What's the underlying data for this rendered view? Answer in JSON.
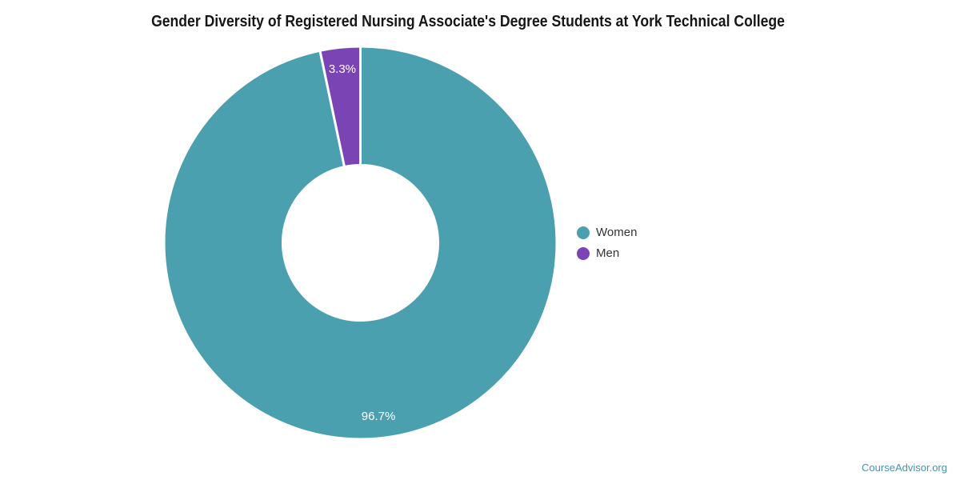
{
  "title": "Gender Diversity of Registered Nursing Associate's Degree Students at York Technical College",
  "watermark": "CourseAdvisor.org",
  "colors": {
    "women": "#4AA0AF",
    "men": "#7A44B4",
    "data_label_text": "#ffffff",
    "legend_text": "#333333",
    "title_text": "#161616",
    "watermark_text": "#4a93a8",
    "slice_border": "#ffffff",
    "background": "#ffffff"
  },
  "chart_data": {
    "type": "pie",
    "donut": true,
    "title": "Gender Diversity of Registered Nursing Associate's Degree Students at York Technical College",
    "series": [
      {
        "name": "Women",
        "value": 96.7,
        "label": "96.7%",
        "color": "#4AA0AF"
      },
      {
        "name": "Men",
        "value": 3.3,
        "label": "3.3%",
        "color": "#7A44B4"
      }
    ],
    "start_angle_deg": 0,
    "direction": "clockwise",
    "legend_position": "right",
    "data_labels": "inside"
  },
  "legend": {
    "items": [
      {
        "label": "Women",
        "color": "#4AA0AF"
      },
      {
        "label": "Men",
        "color": "#7A44B4"
      }
    ]
  }
}
